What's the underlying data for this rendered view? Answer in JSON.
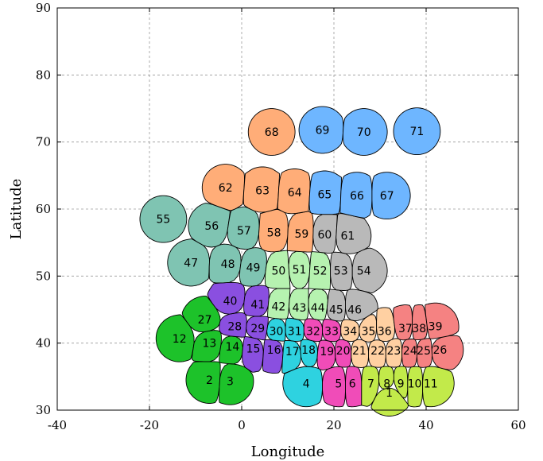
{
  "chart_data": {
    "type": "scatter",
    "title": "",
    "xlabel": "Longitude",
    "ylabel": "Latitude",
    "xlim": [
      -40,
      60
    ],
    "ylim": [
      30,
      90
    ],
    "xticks": [
      -40,
      -20,
      0,
      20,
      40,
      60
    ],
    "yticks": [
      30,
      40,
      50,
      60,
      70,
      80,
      90
    ],
    "xtick_labels": [
      "-40",
      "-20",
      "0",
      "20",
      "40",
      "60"
    ],
    "ytick_labels": [
      "30",
      "40",
      "50",
      "60",
      "70",
      "80",
      "90"
    ],
    "grid": true,
    "group_colors": {
      "green": "#1dc22a",
      "purple": "#8a4fe0",
      "cyan": "#2ed2e0",
      "magenta": "#f04cb8",
      "lime": "#c2ea4a",
      "peach": "#ffd0a2",
      "salmon": "#f58282",
      "light_green": "#b6f2b0",
      "gray": "#b9b9b9",
      "teal": "#7fc4b2",
      "orange": "#ffad78",
      "blue": "#6eb6ff"
    },
    "regions": [
      {
        "id": "1",
        "lon": 32.0,
        "lat": 32.6,
        "group": "lime"
      },
      {
        "id": "2",
        "lon": -7.0,
        "lat": 34.5,
        "group": "green"
      },
      {
        "id": "3",
        "lon": -2.5,
        "lat": 34.3,
        "group": "green"
      },
      {
        "id": "4",
        "lon": 14.0,
        "lat": 34.0,
        "group": "cyan"
      },
      {
        "id": "5",
        "lon": 21.0,
        "lat": 34.0,
        "group": "magenta"
      },
      {
        "id": "6",
        "lon": 24.0,
        "lat": 34.0,
        "group": "magenta"
      },
      {
        "id": "7",
        "lon": 28.0,
        "lat": 34.0,
        "group": "lime"
      },
      {
        "id": "8",
        "lon": 31.5,
        "lat": 34.0,
        "group": "lime"
      },
      {
        "id": "9",
        "lon": 34.5,
        "lat": 34.0,
        "group": "lime"
      },
      {
        "id": "10",
        "lon": 37.5,
        "lat": 34.0,
        "group": "lime"
      },
      {
        "id": "11",
        "lon": 41.0,
        "lat": 34.0,
        "group": "lime"
      },
      {
        "id": "12",
        "lon": -13.5,
        "lat": 40.7,
        "group": "green"
      },
      {
        "id": "13",
        "lon": -7.0,
        "lat": 40.0,
        "group": "green"
      },
      {
        "id": "14",
        "lon": -2.0,
        "lat": 39.5,
        "group": "green"
      },
      {
        "id": "15",
        "lon": 2.5,
        "lat": 39.2,
        "group": "purple"
      },
      {
        "id": "16",
        "lon": 7.0,
        "lat": 39.0,
        "group": "purple"
      },
      {
        "id": "17",
        "lon": 11.0,
        "lat": 38.8,
        "group": "cyan"
      },
      {
        "id": "18",
        "lon": 14.5,
        "lat": 39.0,
        "group": "cyan"
      },
      {
        "id": "19",
        "lon": 18.5,
        "lat": 38.8,
        "group": "magenta"
      },
      {
        "id": "20",
        "lon": 22.0,
        "lat": 38.9,
        "group": "magenta"
      },
      {
        "id": "21",
        "lon": 25.5,
        "lat": 38.9,
        "group": "peach"
      },
      {
        "id": "22",
        "lon": 29.5,
        "lat": 38.9,
        "group": "peach"
      },
      {
        "id": "23",
        "lon": 33.0,
        "lat": 38.9,
        "group": "peach"
      },
      {
        "id": "24",
        "lon": 36.5,
        "lat": 38.9,
        "group": "salmon"
      },
      {
        "id": "25",
        "lon": 39.5,
        "lat": 38.9,
        "group": "salmon"
      },
      {
        "id": "26",
        "lon": 43.0,
        "lat": 39.0,
        "group": "salmon"
      },
      {
        "id": "27",
        "lon": -8.0,
        "lat": 43.5,
        "group": "green"
      },
      {
        "id": "28",
        "lon": -1.5,
        "lat": 42.5,
        "group": "purple"
      },
      {
        "id": "29",
        "lon": 3.5,
        "lat": 42.2,
        "group": "purple"
      },
      {
        "id": "30",
        "lon": 7.5,
        "lat": 41.8,
        "group": "cyan"
      },
      {
        "id": "31",
        "lon": 11.5,
        "lat": 41.8,
        "group": "cyan"
      },
      {
        "id": "32",
        "lon": 15.5,
        "lat": 41.8,
        "group": "magenta"
      },
      {
        "id": "33",
        "lon": 19.5,
        "lat": 41.8,
        "group": "magenta"
      },
      {
        "id": "34",
        "lon": 23.5,
        "lat": 41.8,
        "group": "peach"
      },
      {
        "id": "35",
        "lon": 27.5,
        "lat": 41.8,
        "group": "peach"
      },
      {
        "id": "36",
        "lon": 31.0,
        "lat": 41.8,
        "group": "peach"
      },
      {
        "id": "37",
        "lon": 35.5,
        "lat": 42.2,
        "group": "salmon"
      },
      {
        "id": "38",
        "lon": 38.5,
        "lat": 42.2,
        "group": "salmon"
      },
      {
        "id": "39",
        "lon": 42.0,
        "lat": 42.5,
        "group": "salmon"
      },
      {
        "id": "40",
        "lon": -2.5,
        "lat": 46.3,
        "group": "purple"
      },
      {
        "id": "41",
        "lon": 3.5,
        "lat": 45.8,
        "group": "purple"
      },
      {
        "id": "42",
        "lon": 8.0,
        "lat": 45.5,
        "group": "light_green"
      },
      {
        "id": "43",
        "lon": 12.5,
        "lat": 45.3,
        "group": "light_green"
      },
      {
        "id": "44",
        "lon": 16.5,
        "lat": 45.3,
        "group": "light_green"
      },
      {
        "id": "45",
        "lon": 20.5,
        "lat": 45.0,
        "group": "gray"
      },
      {
        "id": "46",
        "lon": 24.5,
        "lat": 45.0,
        "group": "gray"
      },
      {
        "id": "47",
        "lon": -11.0,
        "lat": 52.0,
        "group": "teal"
      },
      {
        "id": "48",
        "lon": -3.0,
        "lat": 51.8,
        "group": "teal"
      },
      {
        "id": "49",
        "lon": 2.5,
        "lat": 51.3,
        "group": "teal"
      },
      {
        "id": "50",
        "lon": 8.0,
        "lat": 50.8,
        "group": "light_green"
      },
      {
        "id": "51",
        "lon": 12.5,
        "lat": 51.0,
        "group": "light_green"
      },
      {
        "id": "52",
        "lon": 17.0,
        "lat": 50.8,
        "group": "light_green"
      },
      {
        "id": "53",
        "lon": 21.5,
        "lat": 50.8,
        "group": "gray"
      },
      {
        "id": "54",
        "lon": 26.5,
        "lat": 50.8,
        "group": "gray"
      },
      {
        "id": "55",
        "lon": -17.0,
        "lat": 58.5,
        "group": "teal"
      },
      {
        "id": "56",
        "lon": -6.5,
        "lat": 57.5,
        "group": "teal"
      },
      {
        "id": "57",
        "lon": 0.5,
        "lat": 56.8,
        "group": "teal"
      },
      {
        "id": "58",
        "lon": 7.0,
        "lat": 56.5,
        "group": "orange"
      },
      {
        "id": "59",
        "lon": 13.0,
        "lat": 56.3,
        "group": "orange"
      },
      {
        "id": "60",
        "lon": 18.0,
        "lat": 56.2,
        "group": "gray"
      },
      {
        "id": "61",
        "lon": 23.0,
        "lat": 56.0,
        "group": "gray"
      },
      {
        "id": "62",
        "lon": -3.5,
        "lat": 63.2,
        "group": "orange"
      },
      {
        "id": "63",
        "lon": 4.5,
        "lat": 62.8,
        "group": "orange"
      },
      {
        "id": "64",
        "lon": 11.5,
        "lat": 62.5,
        "group": "orange"
      },
      {
        "id": "65",
        "lon": 18.0,
        "lat": 62.2,
        "group": "blue"
      },
      {
        "id": "66",
        "lon": 25.0,
        "lat": 62.0,
        "group": "blue"
      },
      {
        "id": "67",
        "lon": 31.5,
        "lat": 62.0,
        "group": "blue"
      },
      {
        "id": "68",
        "lon": 6.5,
        "lat": 71.5,
        "group": "orange"
      },
      {
        "id": "69",
        "lon": 17.5,
        "lat": 71.8,
        "group": "blue"
      },
      {
        "id": "70",
        "lon": 26.5,
        "lat": 71.5,
        "group": "blue"
      },
      {
        "id": "71",
        "lon": 38.0,
        "lat": 71.6,
        "group": "blue"
      }
    ]
  }
}
